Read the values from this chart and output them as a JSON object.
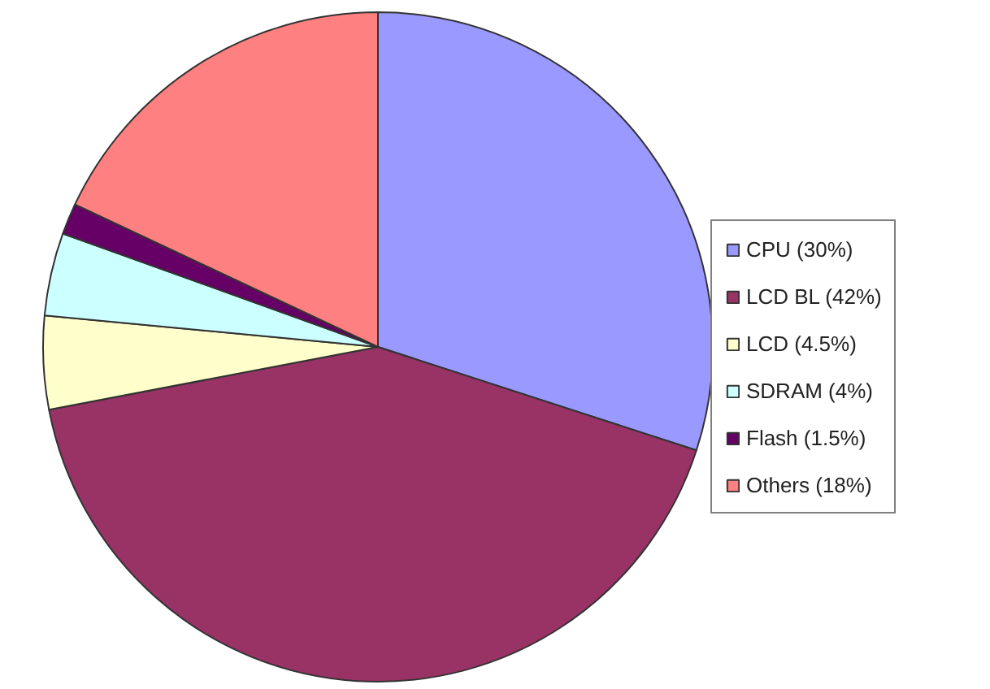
{
  "chart_data": {
    "type": "pie",
    "categories": [
      "CPU (30%)",
      "LCD BL (42%)",
      "LCD (4.5%)",
      "SDRAM (4%)",
      "Flash (1.5%)",
      "Others (18%)"
    ],
    "values": [
      30,
      42,
      4.5,
      4,
      1.5,
      18
    ],
    "colors": [
      "#9999ff",
      "#993366",
      "#ffffcc",
      "#ccffff",
      "#660066",
      "#ff8080"
    ],
    "legend": "right"
  }
}
